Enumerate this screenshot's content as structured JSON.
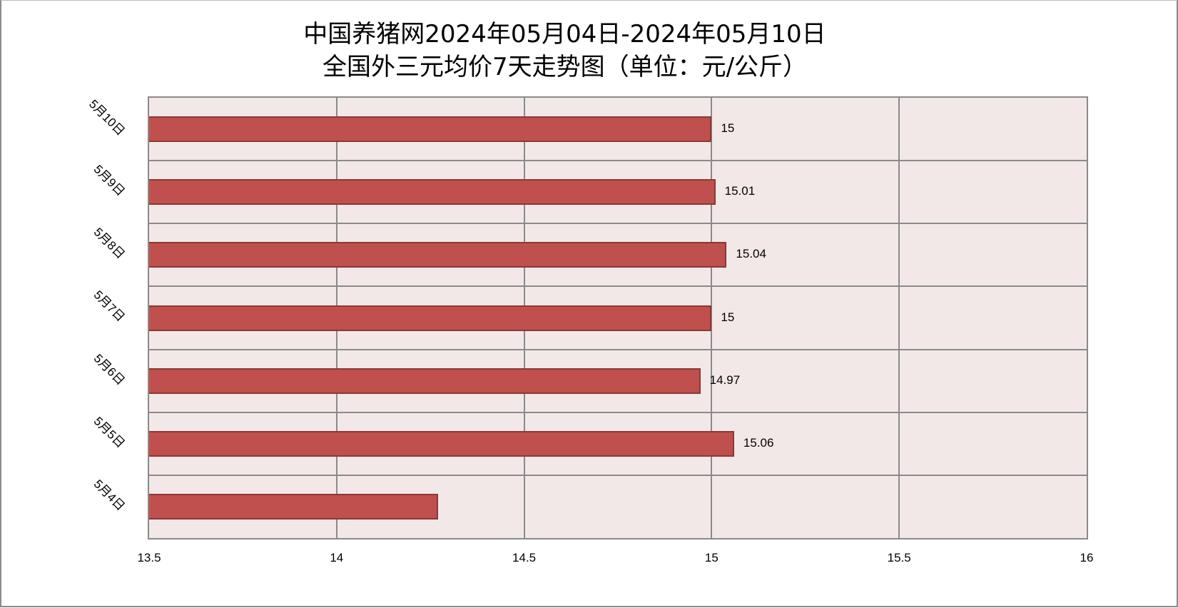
{
  "chart_data": {
    "type": "bar",
    "orientation": "horizontal",
    "title": "中国养猪网2024年05月04日-2024年05月10日 全国外三元均价7天走势图（单位：元/公斤）",
    "title_lines": [
      "中国养猪网2024年05月04日-2024年05月10日",
      "全国外三元均价7天走势图（单位：元/公斤）"
    ],
    "categories": [
      "5月4日",
      "5月5日",
      "5月6日",
      "5月7日",
      "5月8日",
      "5月9日",
      "5月10日"
    ],
    "values": [
      14.27,
      15.06,
      14.97,
      15,
      15.04,
      15.01,
      15
    ],
    "data_labels": [
      "",
      "15.06",
      "14.97",
      "15",
      "15.04",
      "15.01",
      "15"
    ],
    "xlabel": "",
    "ylabel": "",
    "xlim": [
      13.5,
      16
    ],
    "x_ticks": [
      "13.5",
      "14",
      "14.5",
      "15",
      "15.5",
      "16"
    ],
    "grid": true,
    "legend": "none",
    "colors": {
      "bar": "#c0504d",
      "bar_border": "#8c3836",
      "plot_bg": "#f2e8e8",
      "grid": "#8a8a8a"
    }
  }
}
